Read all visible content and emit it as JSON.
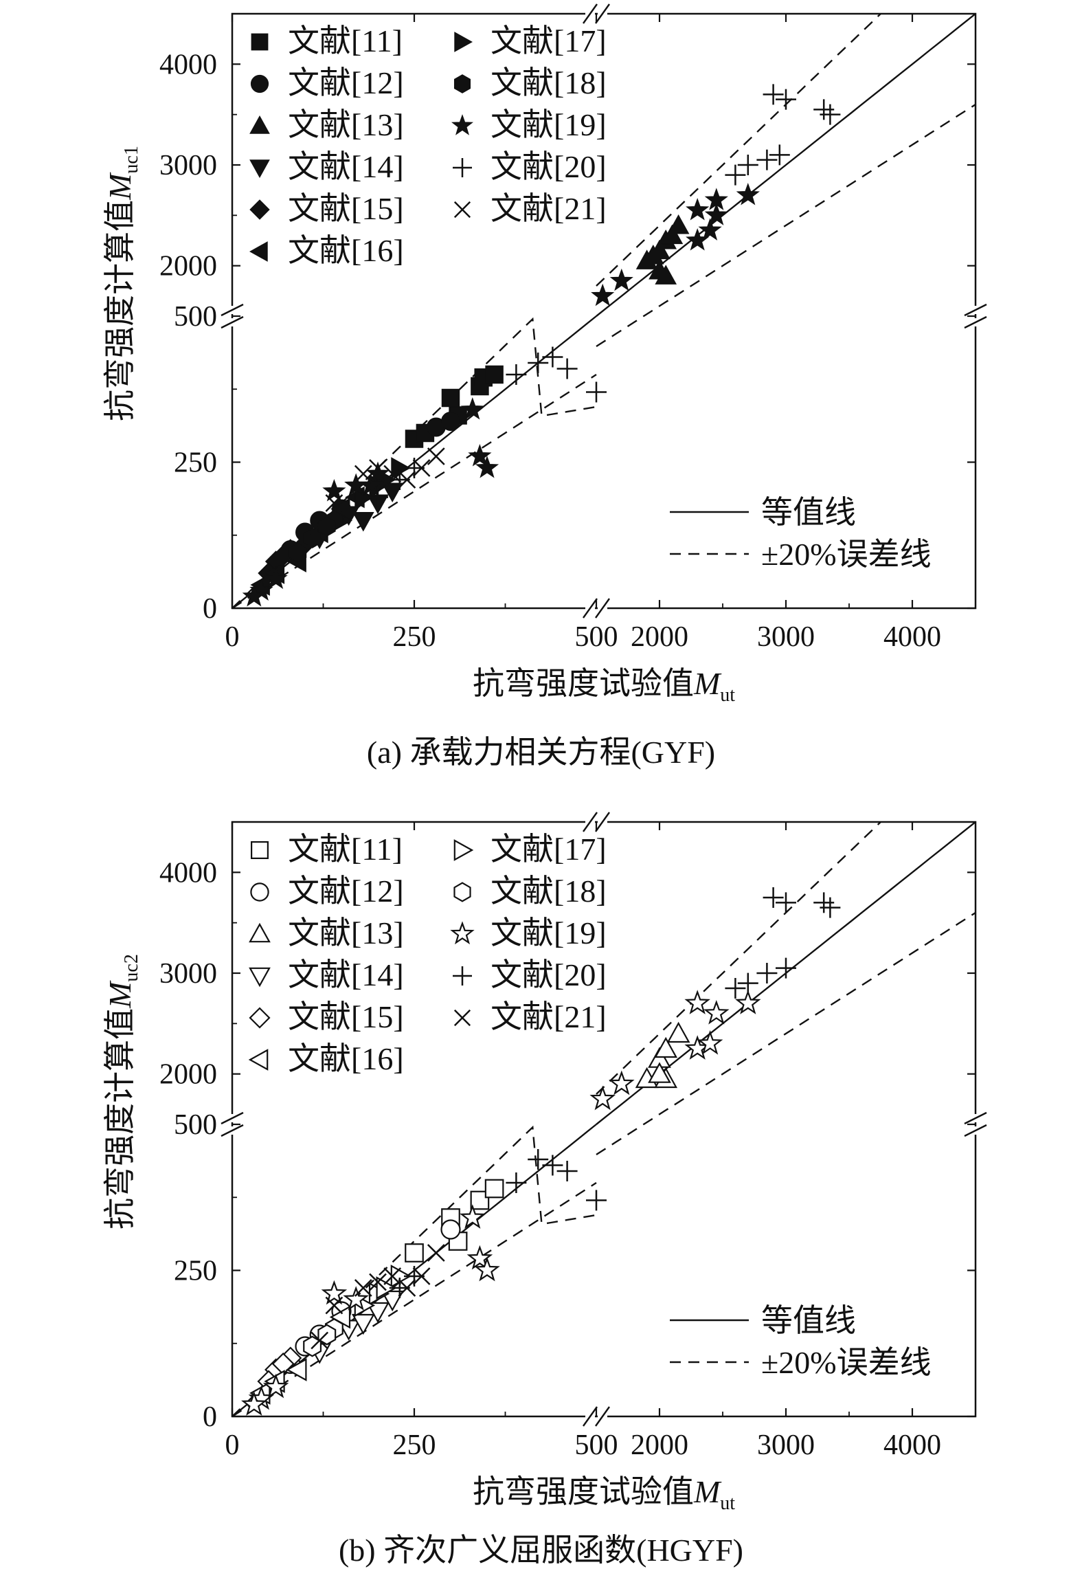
{
  "panels": [
    {
      "id": "a",
      "caption": "(a) 承载力相关方程(GYF)",
      "ylabel_main": "抗弯强度计算值",
      "ylabel_sym": "M",
      "ylabel_sub": "uc1",
      "xlabel_main": "抗弯强度试验值",
      "xlabel_sym": "M",
      "xlabel_sub": "ut",
      "filled": true
    },
    {
      "id": "b",
      "caption": "(b) 齐次广义屈服函数(HGYF)",
      "ylabel_main": "抗弯强度计算值",
      "ylabel_sym": "M",
      "ylabel_sub": "uc2",
      "xlabel_main": "抗弯强度试验值",
      "xlabel_sym": "M",
      "xlabel_sub": "ut",
      "filled": false
    }
  ],
  "line_legend": [
    "等值线",
    "±20%误差线"
  ],
  "chart_data": [
    {
      "type": "scatter",
      "title": "(a) 承载力相关方程(GYF)",
      "xlabel": "抗弯强度试验值Mut",
      "ylabel": "抗弯强度计算值Muc1",
      "axis_break": {
        "low_range": [
          0,
          500
        ],
        "high_range": [
          1500,
          4500
        ]
      },
      "x_ticks": [
        "0",
        "250",
        "500",
        "2000",
        "3000",
        "4000"
      ],
      "y_ticks": [
        "0",
        "250",
        "500",
        "2000",
        "3000",
        "4000"
      ],
      "legend_position": "top-left",
      "series": [
        {
          "name": "文献[11]",
          "marker": "square",
          "points": [
            [
              300,
              360
            ],
            [
              250,
              290
            ],
            [
              265,
              300
            ],
            [
              340,
              380
            ],
            [
              345,
              395
            ],
            [
              360,
              400
            ],
            [
              310,
              330
            ]
          ]
        },
        {
          "name": "文献[12]",
          "marker": "circle",
          "points": [
            [
              100,
              130
            ],
            [
              120,
              150
            ],
            [
              280,
              310
            ],
            [
              300,
              320
            ],
            [
              80,
              100
            ],
            [
              150,
              170
            ]
          ]
        },
        {
          "name": "文献[13]",
          "marker": "triangle-up",
          "points": [
            [
              1900,
              2050
            ],
            [
              2000,
              2150
            ],
            [
              2050,
              2250
            ],
            [
              2100,
              2300
            ],
            [
              2150,
              2400
            ],
            [
              2050,
              1900
            ],
            [
              2000,
              1950
            ],
            [
              1950,
              2100
            ]
          ]
        },
        {
          "name": "文献[14]",
          "marker": "triangle-down",
          "points": [
            [
              160,
              160
            ],
            [
              200,
              180
            ],
            [
              180,
              150
            ],
            [
              220,
              200
            ],
            [
              120,
              120
            ],
            [
              90,
              90
            ]
          ]
        },
        {
          "name": "文献[15]",
          "marker": "diamond",
          "points": [
            [
              60,
              80
            ],
            [
              80,
              100
            ],
            [
              70,
              90
            ],
            [
              100,
              110
            ],
            [
              50,
              60
            ]
          ]
        },
        {
          "name": "文献[16]",
          "marker": "triangle-left",
          "points": [
            [
              40,
              40
            ],
            [
              60,
              60
            ],
            [
              90,
              80
            ],
            [
              120,
              130
            ],
            [
              150,
              170
            ],
            [
              170,
              190
            ]
          ]
        },
        {
          "name": "文献[17]",
          "marker": "triangle-right",
          "points": [
            [
              200,
              210
            ],
            [
              230,
              240
            ],
            [
              180,
              190
            ],
            [
              150,
              150
            ],
            [
              210,
              220
            ]
          ]
        },
        {
          "name": "文献[18]",
          "marker": "hexagon",
          "points": [
            [
              110,
              120
            ],
            [
              140,
              150
            ],
            [
              90,
              95
            ],
            [
              130,
              140
            ]
          ]
        },
        {
          "name": "文献[19]",
          "marker": "star",
          "points": [
            [
              1550,
              1700
            ],
            [
              1700,
              1850
            ],
            [
              2300,
              2250
            ],
            [
              2400,
              2350
            ],
            [
              2450,
              2500
            ],
            [
              2700,
              2700
            ],
            [
              2300,
              2550
            ],
            [
              2450,
              2650
            ],
            [
              340,
              260
            ],
            [
              350,
              240
            ],
            [
              330,
              340
            ],
            [
              140,
              200
            ],
            [
              170,
              210
            ],
            [
              40,
              30
            ],
            [
              30,
              20
            ],
            [
              60,
              50
            ],
            [
              190,
              210
            ],
            [
              200,
              230
            ]
          ]
        },
        {
          "name": "文献[20]",
          "marker": "plus",
          "points": [
            [
              2600,
              2900
            ],
            [
              2700,
              3000
            ],
            [
              2850,
              3050
            ],
            [
              2950,
              3100
            ],
            [
              2900,
              3700
            ],
            [
              3000,
              3650
            ],
            [
              3300,
              3550
            ],
            [
              3350,
              3500
            ],
            [
              420,
              420
            ],
            [
              440,
              430
            ],
            [
              460,
              410
            ],
            [
              390,
              400
            ],
            [
              500,
              370
            ],
            [
              200,
              190
            ],
            [
              250,
              240
            ],
            [
              230,
              220
            ]
          ]
        },
        {
          "name": "文献[21]",
          "marker": "x",
          "points": [
            [
              140,
              180
            ],
            [
              180,
              230
            ],
            [
              200,
              240
            ],
            [
              220,
              230
            ],
            [
              240,
              220
            ],
            [
              260,
              240
            ],
            [
              280,
              260
            ],
            [
              120,
              140
            ]
          ]
        }
      ]
    },
    {
      "type": "scatter",
      "title": "(b) 齐次广义屈服函数(HGYF)",
      "xlabel": "抗弯强度试验值Mut",
      "ylabel": "抗弯强度计算值Muc2",
      "axis_break": {
        "low_range": [
          0,
          500
        ],
        "high_range": [
          1500,
          4500
        ]
      },
      "x_ticks": [
        "0",
        "250",
        "500",
        "2000",
        "3000",
        "4000"
      ],
      "y_ticks": [
        "0",
        "250",
        "500",
        "2000",
        "3000",
        "4000"
      ],
      "legend_position": "top-left",
      "series": [
        {
          "name": "文献[11]",
          "marker": "square",
          "points": [
            [
              300,
              340
            ],
            [
              250,
              280
            ],
            [
              340,
              370
            ],
            [
              360,
              390
            ],
            [
              310,
              300
            ]
          ]
        },
        {
          "name": "文献[12]",
          "marker": "circle",
          "points": [
            [
              100,
              120
            ],
            [
              120,
              140
            ],
            [
              300,
              320
            ],
            [
              80,
              90
            ],
            [
              150,
              180
            ]
          ]
        },
        {
          "name": "文献[13]",
          "marker": "triangle-up",
          "points": [
            [
              1900,
              1950
            ],
            [
              2000,
              2150
            ],
            [
              2050,
              2250
            ],
            [
              2150,
              2400
            ],
            [
              2050,
              1950
            ],
            [
              2000,
              2000
            ]
          ]
        },
        {
          "name": "文献[14]",
          "marker": "triangle-down",
          "points": [
            [
              160,
              150
            ],
            [
              200,
              180
            ],
            [
              180,
              160
            ],
            [
              220,
              200
            ],
            [
              120,
              110
            ]
          ]
        },
        {
          "name": "文献[15]",
          "marker": "diamond",
          "points": [
            [
              60,
              80
            ],
            [
              80,
              100
            ],
            [
              70,
              90
            ],
            [
              50,
              60
            ]
          ]
        },
        {
          "name": "文献[16]",
          "marker": "triangle-left",
          "points": [
            [
              40,
              40
            ],
            [
              60,
              60
            ],
            [
              90,
              80
            ],
            [
              150,
              170
            ]
          ]
        },
        {
          "name": "文献[17]",
          "marker": "triangle-right",
          "points": [
            [
              200,
              210
            ],
            [
              230,
              240
            ],
            [
              180,
              190
            ],
            [
              210,
              220
            ]
          ]
        },
        {
          "name": "文献[18]",
          "marker": "hexagon",
          "points": [
            [
              110,
              120
            ],
            [
              140,
              150
            ],
            [
              130,
              140
            ]
          ]
        },
        {
          "name": "文献[19]",
          "marker": "star",
          "points": [
            [
              1550,
              1750
            ],
            [
              1700,
              1900
            ],
            [
              2300,
              2250
            ],
            [
              2400,
              2300
            ],
            [
              2450,
              2600
            ],
            [
              2700,
              2700
            ],
            [
              2300,
              2700
            ],
            [
              340,
              270
            ],
            [
              350,
              250
            ],
            [
              330,
              340
            ],
            [
              140,
              210
            ],
            [
              170,
              200
            ],
            [
              40,
              30
            ],
            [
              30,
              20
            ],
            [
              60,
              50
            ]
          ]
        },
        {
          "name": "文献[20]",
          "marker": "plus",
          "points": [
            [
              2600,
              2850
            ],
            [
              2700,
              2900
            ],
            [
              2850,
              3000
            ],
            [
              3000,
              3050
            ],
            [
              2900,
              3750
            ],
            [
              3000,
              3700
            ],
            [
              3300,
              3700
            ],
            [
              3350,
              3650
            ],
            [
              420,
              440
            ],
            [
              440,
              430
            ],
            [
              460,
              420
            ],
            [
              390,
              400
            ],
            [
              500,
              370
            ],
            [
              250,
              240
            ],
            [
              230,
              220
            ]
          ]
        },
        {
          "name": "文献[21]",
          "marker": "x",
          "points": [
            [
              140,
              190
            ],
            [
              180,
              220
            ],
            [
              200,
              230
            ],
            [
              220,
              240
            ],
            [
              240,
              220
            ],
            [
              260,
              240
            ],
            [
              280,
              280
            ],
            [
              120,
              130
            ]
          ]
        }
      ]
    }
  ]
}
